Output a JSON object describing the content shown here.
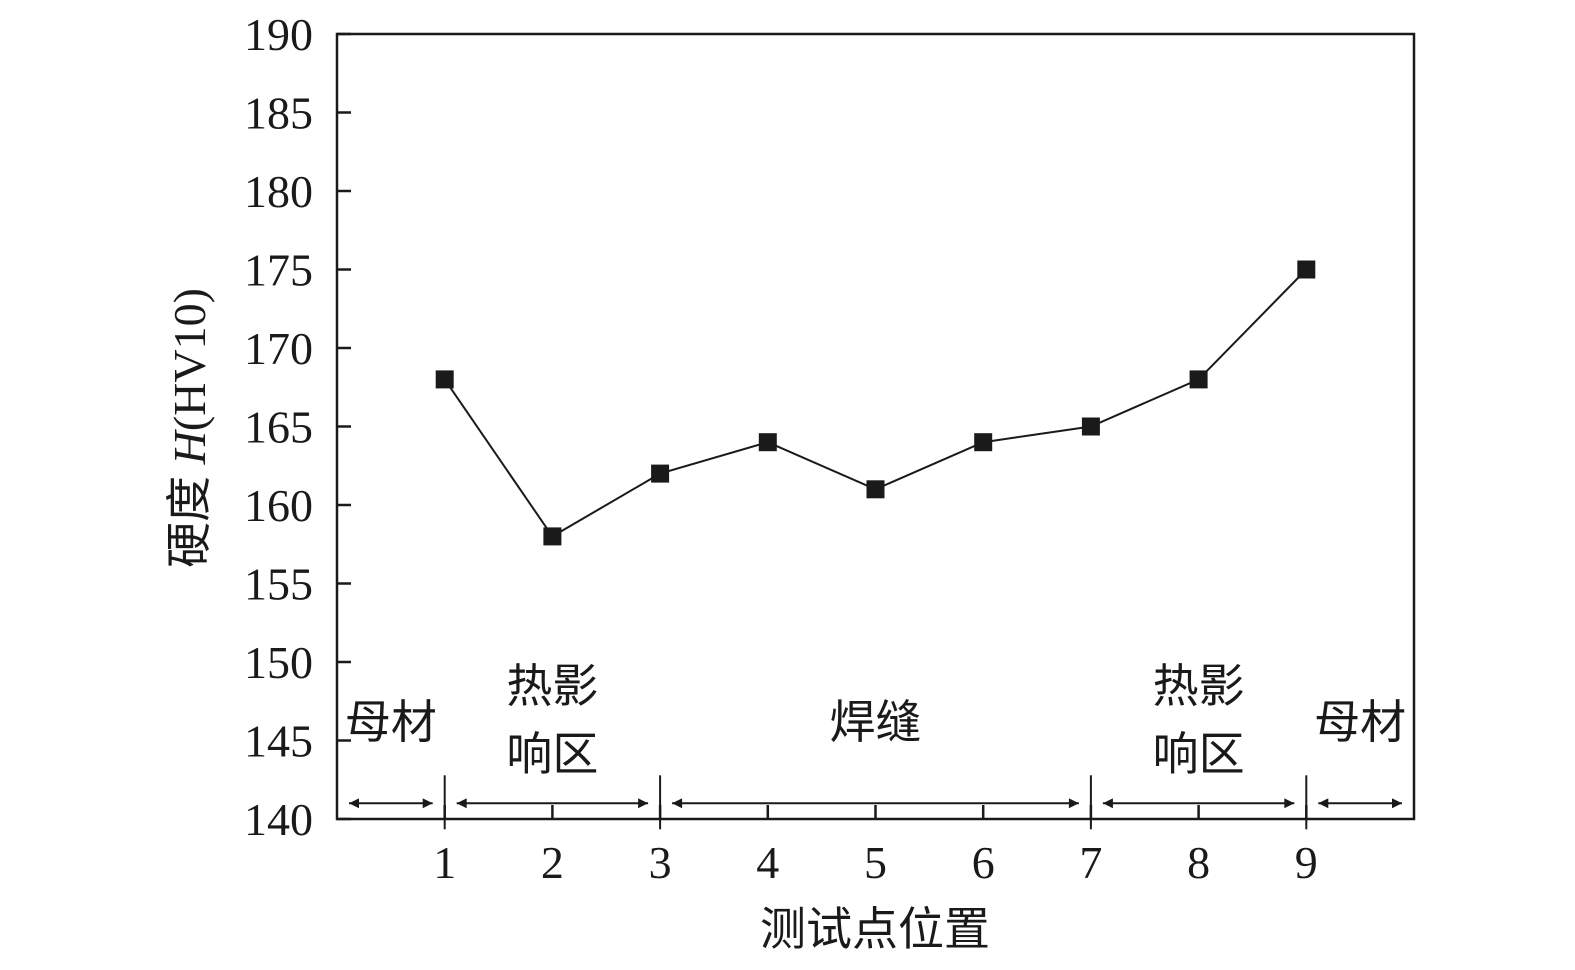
{
  "chart_data": {
    "type": "line",
    "x": [
      1,
      2,
      3,
      4,
      5,
      6,
      7,
      8,
      9
    ],
    "series": [
      {
        "values": [
          168,
          158,
          162,
          164,
          161,
          164,
          165,
          168,
          175
        ]
      }
    ],
    "xlabel": "测试点位置",
    "ylabel_prefix": "硬度 ",
    "ylabel_var": "H",
    "ylabel_unit": "(HV10)",
    "xlim": [
      0,
      10
    ],
    "ylim": [
      140,
      190
    ],
    "xticks": [
      1,
      2,
      3,
      4,
      5,
      6,
      7,
      8,
      9
    ],
    "yticks": [
      140,
      145,
      150,
      155,
      160,
      165,
      170,
      175,
      180,
      185,
      190
    ],
    "marker": "square",
    "grid": false,
    "colors": {
      "line": "#1a1a1a",
      "marker": "#1a1a1a"
    },
    "regions": [
      {
        "lines": [
          "母材"
        ],
        "from": 0,
        "to": 1
      },
      {
        "lines": [
          "热影",
          "响区"
        ],
        "from": 1,
        "to": 3
      },
      {
        "lines": [
          "焊缝"
        ],
        "from": 3,
        "to": 7
      },
      {
        "lines": [
          "热影",
          "响区"
        ],
        "from": 7,
        "to": 9
      },
      {
        "lines": [
          "母材"
        ],
        "from": 9,
        "to": 10
      }
    ],
    "region_arrow_y": 141
  }
}
